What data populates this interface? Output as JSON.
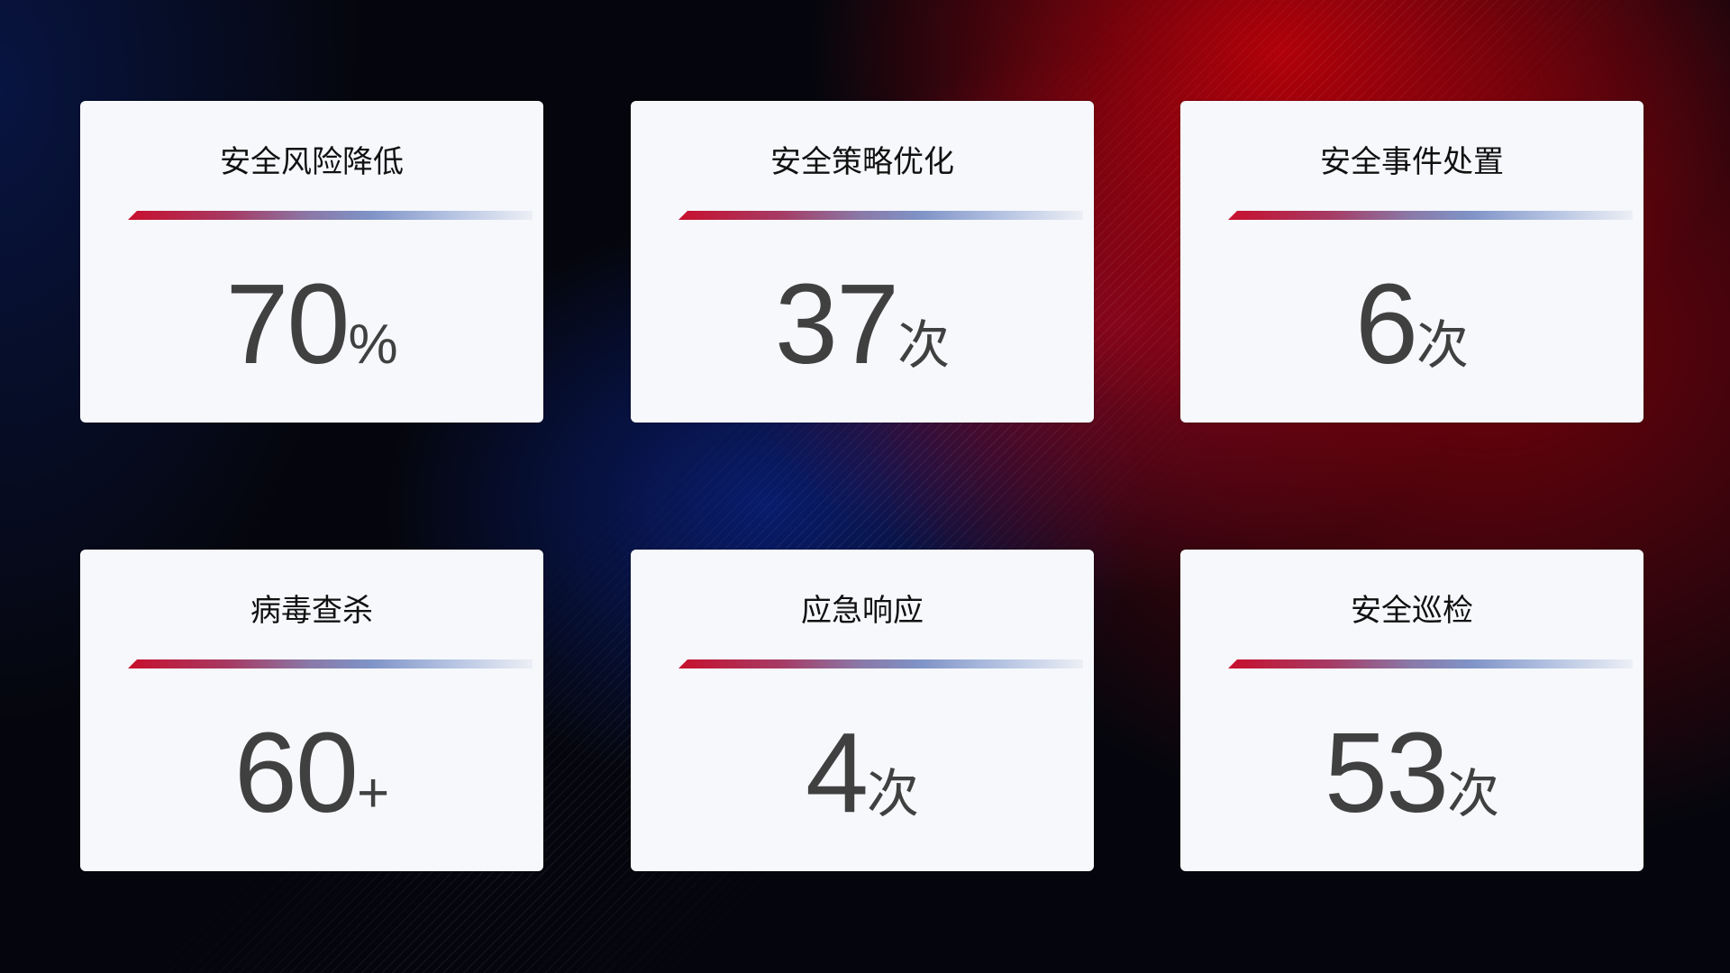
{
  "cards": [
    {
      "title": "安全风险降低",
      "value": "70",
      "unit": "%"
    },
    {
      "title": "安全策略优化",
      "value": "37",
      "unit": "次"
    },
    {
      "title": "安全事件处置",
      "value": "6",
      "unit": "次"
    },
    {
      "title": "病毒查杀",
      "value": "60",
      "unit": "+"
    },
    {
      "title": "应急响应",
      "value": "4",
      "unit": "次"
    },
    {
      "title": "安全巡检",
      "value": "53",
      "unit": "次"
    }
  ],
  "colors": {
    "accent_red": "#c8102e",
    "accent_blue": "#7f93c7",
    "value_text": "#404040",
    "card_bg": "#f6f8fc"
  }
}
